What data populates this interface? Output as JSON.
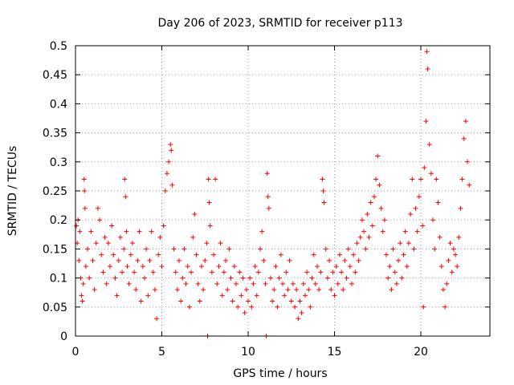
{
  "chart_data": {
    "type": "scatter",
    "title": "Day 206 of 2023, SRMTID for receiver p113",
    "xlabel": "GPS time / hours",
    "ylabel": "SRMTID / TECUs",
    "xlim": [
      0,
      24
    ],
    "ylim": [
      0,
      0.5
    ],
    "xticks": [
      0,
      5,
      10,
      15,
      20
    ],
    "xtick_labels": [
      "0",
      "5",
      "10",
      "15",
      "20"
    ],
    "yticks": [
      0,
      0.05,
      0.1,
      0.15,
      0.2,
      0.25,
      0.3,
      0.35,
      0.4,
      0.45,
      0.5
    ],
    "ytick_labels": [
      "0",
      "0.05",
      "0.1",
      "0.15",
      "0.2",
      "0.25",
      "0.3",
      "0.35",
      "0.4",
      "0.45",
      "0.5"
    ],
    "grid": true,
    "marker": "+",
    "color": "#ff0000",
    "series": [
      {
        "name": "SRMTID",
        "points": [
          [
            0.05,
            0.19
          ],
          [
            0.1,
            0.16
          ],
          [
            0.15,
            0.2
          ],
          [
            0.2,
            0.13
          ],
          [
            0.25,
            0.18
          ],
          [
            0.3,
            0.1
          ],
          [
            0.35,
            0.07
          ],
          [
            0.4,
            0.06
          ],
          [
            0.45,
            0.09
          ],
          [
            0.5,
            0.27
          ],
          [
            0.52,
            0.25
          ],
          [
            0.55,
            0.22
          ],
          [
            0.6,
            0.12
          ],
          [
            0.7,
            0.15
          ],
          [
            0.8,
            0.1
          ],
          [
            0.9,
            0.18
          ],
          [
            1.0,
            0.13
          ],
          [
            1.1,
            0.08
          ],
          [
            1.2,
            0.16
          ],
          [
            1.3,
            0.22
          ],
          [
            1.4,
            0.2
          ],
          [
            1.5,
            0.14
          ],
          [
            1.6,
            0.11
          ],
          [
            1.7,
            0.17
          ],
          [
            1.8,
            0.09
          ],
          [
            1.9,
            0.16
          ],
          [
            2.0,
            0.12
          ],
          [
            2.1,
            0.19
          ],
          [
            2.2,
            0.14
          ],
          [
            2.3,
            0.1
          ],
          [
            2.4,
            0.07
          ],
          [
            2.5,
            0.13
          ],
          [
            2.6,
            0.17
          ],
          [
            2.7,
            0.11
          ],
          [
            2.8,
            0.15
          ],
          [
            2.85,
            0.27
          ],
          [
            2.9,
            0.24
          ],
          [
            2.95,
            0.18
          ],
          [
            3.0,
            0.12
          ],
          [
            3.1,
            0.09
          ],
          [
            3.2,
            0.14
          ],
          [
            3.3,
            0.16
          ],
          [
            3.4,
            0.11
          ],
          [
            3.5,
            0.08
          ],
          [
            3.6,
            0.13
          ],
          [
            3.7,
            0.18
          ],
          [
            3.8,
            0.06
          ],
          [
            3.9,
            0.12
          ],
          [
            4.0,
            0.1
          ],
          [
            4.1,
            0.15
          ],
          [
            4.2,
            0.07
          ],
          [
            4.3,
            0.13
          ],
          [
            4.4,
            0.18
          ],
          [
            4.5,
            0.11
          ],
          [
            4.6,
            0.08
          ],
          [
            4.7,
            0.03
          ],
          [
            4.8,
            0.14
          ],
          [
            4.9,
            0.17
          ],
          [
            5.0,
            0.12
          ],
          [
            5.1,
            0.19
          ],
          [
            5.2,
            0.25
          ],
          [
            5.3,
            0.28
          ],
          [
            5.4,
            0.3
          ],
          [
            5.5,
            0.33
          ],
          [
            5.55,
            0.32
          ],
          [
            5.6,
            0.26
          ],
          [
            5.7,
            0.15
          ],
          [
            5.8,
            0.11
          ],
          [
            5.9,
            0.08
          ],
          [
            6.0,
            0.13
          ],
          [
            6.1,
            0.06
          ],
          [
            6.2,
            0.1
          ],
          [
            6.3,
            0.15
          ],
          [
            6.4,
            0.09
          ],
          [
            6.5,
            0.12
          ],
          [
            6.6,
            0.05
          ],
          [
            6.7,
            0.11
          ],
          [
            6.8,
            0.17
          ],
          [
            6.9,
            0.21
          ],
          [
            7.0,
            0.14
          ],
          [
            7.1,
            0.09
          ],
          [
            7.2,
            0.06
          ],
          [
            7.3,
            0.12
          ],
          [
            7.4,
            0.08
          ],
          [
            7.5,
            0.13
          ],
          [
            7.6,
            0.16
          ],
          [
            7.65,
            0.0
          ],
          [
            7.7,
            0.27
          ],
          [
            7.75,
            0.23
          ],
          [
            7.8,
            0.19
          ],
          [
            7.9,
            0.11
          ],
          [
            8.0,
            0.14
          ],
          [
            8.1,
            0.27
          ],
          [
            8.2,
            0.09
          ],
          [
            8.3,
            0.12
          ],
          [
            8.4,
            0.16
          ],
          [
            8.5,
            0.07
          ],
          [
            8.6,
            0.11
          ],
          [
            8.7,
            0.13
          ],
          [
            8.8,
            0.08
          ],
          [
            8.9,
            0.15
          ],
          [
            9.0,
            0.1
          ],
          [
            9.1,
            0.06
          ],
          [
            9.2,
            0.12
          ],
          [
            9.3,
            0.09
          ],
          [
            9.4,
            0.05
          ],
          [
            9.5,
            0.11
          ],
          [
            9.6,
            0.07
          ],
          [
            9.7,
            0.1
          ],
          [
            9.8,
            0.04
          ],
          [
            9.9,
            0.08
          ],
          [
            10.0,
            0.06
          ],
          [
            10.1,
            0.1
          ],
          [
            10.2,
            0.05
          ],
          [
            10.3,
            0.09
          ],
          [
            10.4,
            0.12
          ],
          [
            10.5,
            0.07
          ],
          [
            10.6,
            0.11
          ],
          [
            10.7,
            0.15
          ],
          [
            10.8,
            0.18
          ],
          [
            10.9,
            0.13
          ],
          [
            11.0,
            0.09
          ],
          [
            11.05,
            0.0
          ],
          [
            11.1,
            0.28
          ],
          [
            11.15,
            0.24
          ],
          [
            11.2,
            0.22
          ],
          [
            11.3,
            0.1
          ],
          [
            11.4,
            0.06
          ],
          [
            11.5,
            0.08
          ],
          [
            11.6,
            0.12
          ],
          [
            11.7,
            0.05
          ],
          [
            11.8,
            0.1
          ],
          [
            11.9,
            0.14
          ],
          [
            12.0,
            0.09
          ],
          [
            12.1,
            0.07
          ],
          [
            12.2,
            0.11
          ],
          [
            12.3,
            0.08
          ],
          [
            12.4,
            0.13
          ],
          [
            12.5,
            0.06
          ],
          [
            12.6,
            0.09
          ],
          [
            12.7,
            0.05
          ],
          [
            12.8,
            0.08
          ],
          [
            12.9,
            0.03
          ],
          [
            13.0,
            0.06
          ],
          [
            13.1,
            0.04
          ],
          [
            13.2,
            0.09
          ],
          [
            13.3,
            0.07
          ],
          [
            13.4,
            0.11
          ],
          [
            13.5,
            0.08
          ],
          [
            13.6,
            0.05
          ],
          [
            13.7,
            0.1
          ],
          [
            13.8,
            0.14
          ],
          [
            13.9,
            0.09
          ],
          [
            14.0,
            0.12
          ],
          [
            14.1,
            0.08
          ],
          [
            14.2,
            0.11
          ],
          [
            14.3,
            0.27
          ],
          [
            14.35,
            0.25
          ],
          [
            14.4,
            0.23
          ],
          [
            14.5,
            0.15
          ],
          [
            14.6,
            0.1
          ],
          [
            14.7,
            0.13
          ],
          [
            14.8,
            0.08
          ],
          [
            14.9,
            0.11
          ],
          [
            15.0,
            0.07
          ],
          [
            15.1,
            0.12
          ],
          [
            15.2,
            0.09
          ],
          [
            15.3,
            0.14
          ],
          [
            15.4,
            0.11
          ],
          [
            15.5,
            0.08
          ],
          [
            15.6,
            0.13
          ],
          [
            15.7,
            0.1
          ],
          [
            15.8,
            0.15
          ],
          [
            15.9,
            0.12
          ],
          [
            16.0,
            0.09
          ],
          [
            16.1,
            0.14
          ],
          [
            16.2,
            0.11
          ],
          [
            16.3,
            0.16
          ],
          [
            16.4,
            0.13
          ],
          [
            16.5,
            0.17
          ],
          [
            16.6,
            0.2
          ],
          [
            16.7,
            0.18
          ],
          [
            16.8,
            0.15
          ],
          [
            16.9,
            0.21
          ],
          [
            17.0,
            0.17
          ],
          [
            17.1,
            0.23
          ],
          [
            17.2,
            0.19
          ],
          [
            17.3,
            0.24
          ],
          [
            17.4,
            0.27
          ],
          [
            17.5,
            0.31
          ],
          [
            17.6,
            0.26
          ],
          [
            17.7,
            0.22
          ],
          [
            17.8,
            0.18
          ],
          [
            17.9,
            0.2
          ],
          [
            18.0,
            0.14
          ],
          [
            18.1,
            0.1
          ],
          [
            18.2,
            0.12
          ],
          [
            18.3,
            0.08
          ],
          [
            18.4,
            0.15
          ],
          [
            18.5,
            0.11
          ],
          [
            18.6,
            0.09
          ],
          [
            18.7,
            0.13
          ],
          [
            18.8,
            0.16
          ],
          [
            18.9,
            0.1
          ],
          [
            19.0,
            0.14
          ],
          [
            19.1,
            0.18
          ],
          [
            19.2,
            0.12
          ],
          [
            19.3,
            0.16
          ],
          [
            19.4,
            0.21
          ],
          [
            19.5,
            0.27
          ],
          [
            19.6,
            0.15
          ],
          [
            19.7,
            0.22
          ],
          [
            19.8,
            0.18
          ],
          [
            19.9,
            0.24
          ],
          [
            20.0,
            0.27
          ],
          [
            20.1,
            0.19
          ],
          [
            20.15,
            0.05
          ],
          [
            20.2,
            0.29
          ],
          [
            20.3,
            0.37
          ],
          [
            20.35,
            0.49
          ],
          [
            20.4,
            0.46
          ],
          [
            20.5,
            0.33
          ],
          [
            20.6,
            0.28
          ],
          [
            20.7,
            0.2
          ],
          [
            20.8,
            0.15
          ],
          [
            20.9,
            0.27
          ],
          [
            21.0,
            0.23
          ],
          [
            21.1,
            0.17
          ],
          [
            21.2,
            0.12
          ],
          [
            21.3,
            0.08
          ],
          [
            21.4,
            0.05
          ],
          [
            21.5,
            0.09
          ],
          [
            21.6,
            0.13
          ],
          [
            21.7,
            0.16
          ],
          [
            21.8,
            0.11
          ],
          [
            21.9,
            0.15
          ],
          [
            22.0,
            0.14
          ],
          [
            22.1,
            0.12
          ],
          [
            22.2,
            0.17
          ],
          [
            22.3,
            0.22
          ],
          [
            22.4,
            0.27
          ],
          [
            22.5,
            0.34
          ],
          [
            22.6,
            0.37
          ],
          [
            22.7,
            0.3
          ],
          [
            22.8,
            0.26
          ]
        ]
      }
    ]
  }
}
